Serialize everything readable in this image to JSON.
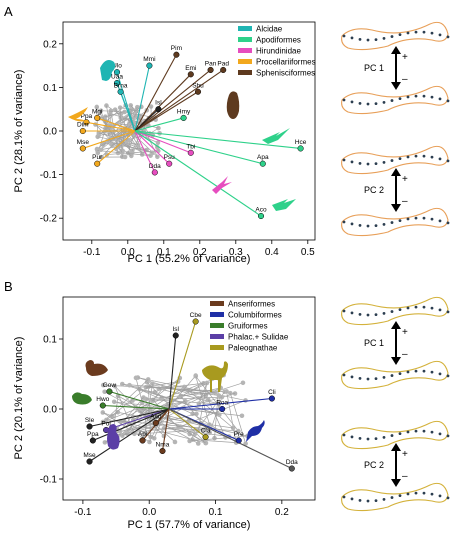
{
  "panel_a": {
    "label": "A",
    "legend": [
      {
        "name": "Alcidae",
        "color": "#1fb5b3"
      },
      {
        "name": "Apodiformes",
        "color": "#2ed18a"
      },
      {
        "name": "Hirundinidae",
        "color": "#e64dbf"
      },
      {
        "name": "Procellariiformes",
        "color": "#f2a81d"
      },
      {
        "name": "Sphenisciformes",
        "color": "#5e3a1f"
      }
    ],
    "side_labels": [
      "PC 1",
      "PC 2"
    ],
    "sign_plus": "+",
    "sign_minus": "–"
  },
  "panel_b": {
    "label": "B",
    "legend": [
      {
        "name": "Anseriformes",
        "color": "#6b3b1e"
      },
      {
        "name": "Columbiformes",
        "color": "#1f2fa6"
      },
      {
        "name": "Gruiformes",
        "color": "#3a7d2b"
      },
      {
        "name": "Phalac.+ Sulidae",
        "color": "#5b3ea6"
      },
      {
        "name": "Paleognathae",
        "color": "#a89a1f"
      }
    ],
    "side_labels": [
      "PC 1",
      "PC 2"
    ],
    "sign_plus": "+",
    "sign_minus": "–"
  },
  "chart_data": [
    {
      "type": "scatter",
      "panel": "A",
      "xlabel": "PC 1 (55.2% of variance)",
      "ylabel": "PC 2 (28.1% of variance)",
      "xlim": [
        -0.18,
        0.52
      ],
      "ylim": [
        -0.25,
        0.25
      ],
      "xticks": [
        "-0.1",
        "0.0",
        "0.1",
        "0.2",
        "0.3",
        "0.4",
        "0.5"
      ],
      "yticks": [
        "-0.2",
        "-0.1",
        "0.0",
        "0.1",
        "0.2"
      ],
      "labeled_points": [
        {
          "label": "Ulo",
          "x": -0.03,
          "y": 0.135,
          "color": "#1fb5b3"
        },
        {
          "label": "Mmi",
          "x": 0.06,
          "y": 0.15,
          "color": "#1fb5b3"
        },
        {
          "label": "Uaa",
          "x": -0.03,
          "y": 0.11,
          "color": "#1fb5b3"
        },
        {
          "label": "Brna",
          "x": -0.02,
          "y": 0.09,
          "color": "#1fb5b3"
        },
        {
          "label": "Pim",
          "x": 0.135,
          "y": 0.175,
          "color": "#5e3a1f"
        },
        {
          "label": "Emi",
          "x": 0.175,
          "y": 0.13,
          "color": "#5e3a1f"
        },
        {
          "label": "Pan",
          "x": 0.23,
          "y": 0.14,
          "color": "#5e3a1f"
        },
        {
          "label": "Pad",
          "x": 0.265,
          "y": 0.14,
          "color": "#5e3a1f"
        },
        {
          "label": "Shu",
          "x": 0.195,
          "y": 0.09,
          "color": "#5e3a1f"
        },
        {
          "label": "Isl",
          "x": 0.085,
          "y": 0.05,
          "color": "#222222"
        },
        {
          "label": "Hmy",
          "x": 0.155,
          "y": 0.03,
          "color": "#2ed18a"
        },
        {
          "label": "Mgi",
          "x": -0.085,
          "y": 0.03,
          "color": "#f2a81d"
        },
        {
          "label": "Ppa",
          "x": -0.115,
          "y": 0.02,
          "color": "#f2a81d"
        },
        {
          "label": "Dim",
          "x": -0.125,
          "y": 0.0,
          "color": "#f2a81d"
        },
        {
          "label": "Mse",
          "x": -0.125,
          "y": -0.04,
          "color": "#f2a81d"
        },
        {
          "label": "Pur",
          "x": -0.085,
          "y": -0.075,
          "color": "#f2a81d"
        },
        {
          "label": "Tbi",
          "x": 0.175,
          "y": -0.05,
          "color": "#e64dbf"
        },
        {
          "label": "Psu",
          "x": 0.115,
          "y": -0.075,
          "color": "#e64dbf"
        },
        {
          "label": "Dda",
          "x": 0.075,
          "y": -0.095,
          "color": "#e64dbf"
        },
        {
          "label": "Hce",
          "x": 0.48,
          "y": -0.04,
          "color": "#2ed18a"
        },
        {
          "label": "Apa",
          "x": 0.375,
          "y": -0.075,
          "color": "#2ed18a"
        },
        {
          "label": "Aco",
          "x": 0.37,
          "y": -0.195,
          "color": "#2ed18a"
        }
      ]
    },
    {
      "type": "scatter",
      "panel": "B",
      "xlabel": "PC 1 (57.7% of variance)",
      "ylabel": "PC 2 (20.1% of variance)",
      "xlim": [
        -0.13,
        0.25
      ],
      "ylim": [
        -0.13,
        0.16
      ],
      "xticks": [
        "-0.1",
        "0.0",
        "0.1",
        "0.2"
      ],
      "yticks": [
        "-0.1",
        "0.0",
        "0.1"
      ],
      "labeled_points": [
        {
          "label": "Cbe",
          "x": 0.07,
          "y": 0.125,
          "color": "#a89a1f"
        },
        {
          "label": "Isl",
          "x": 0.04,
          "y": 0.105,
          "color": "#222222"
        },
        {
          "label": "Gow",
          "x": -0.06,
          "y": 0.025,
          "color": "#3a7d2b"
        },
        {
          "label": "Hwo",
          "x": -0.07,
          "y": 0.005,
          "color": "#3a7d2b"
        },
        {
          "label": "Pol",
          "x": -0.065,
          "y": -0.03,
          "color": "#5b3ea6"
        },
        {
          "label": "Sle",
          "x": -0.09,
          "y": -0.025,
          "color": "#222222"
        },
        {
          "label": "Ppa",
          "x": -0.085,
          "y": -0.045,
          "color": "#222222"
        },
        {
          "label": "Mse",
          "x": -0.09,
          "y": -0.075,
          "color": "#222222"
        },
        {
          "label": "Asu",
          "x": 0.01,
          "y": -0.02,
          "color": "#6b3b1e"
        },
        {
          "label": "Api",
          "x": -0.01,
          "y": -0.045,
          "color": "#6b3b1e"
        },
        {
          "label": "Nma",
          "x": 0.02,
          "y": -0.06,
          "color": "#6b3b1e"
        },
        {
          "label": "Roa",
          "x": 0.11,
          "y": 0.0,
          "color": "#1f2fa6"
        },
        {
          "label": "Cli",
          "x": 0.185,
          "y": 0.015,
          "color": "#1f2fa6"
        },
        {
          "label": "Cla",
          "x": 0.085,
          "y": -0.04,
          "color": "#a89a1f"
        },
        {
          "label": "Pre",
          "x": 0.135,
          "y": -0.045,
          "color": "#1f2fa6"
        },
        {
          "label": "Dda",
          "x": 0.215,
          "y": -0.085,
          "color": "#555555"
        }
      ]
    }
  ]
}
